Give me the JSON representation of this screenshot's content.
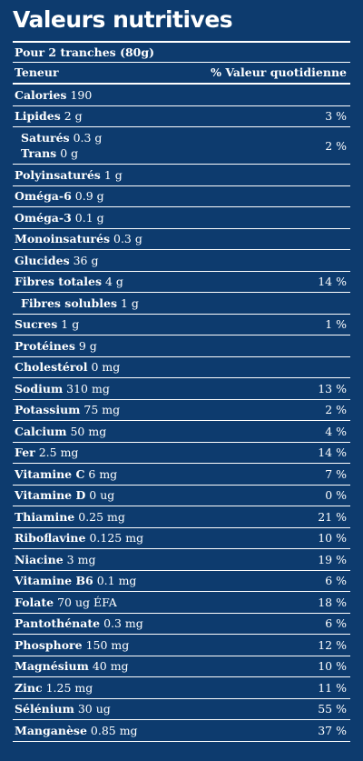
{
  "title": "Valeurs nutritives",
  "serving": "Pour 2 tranches (80g)",
  "header": {
    "left": "Teneur",
    "right": "% Valeur quotidienne"
  },
  "rows": [
    {
      "name": "Calories",
      "amount": "190",
      "dv": ""
    },
    {
      "name": "Lipides",
      "amount": "2 g",
      "dv": "3 %"
    },
    {
      "double": true,
      "sub1_name": "Saturés",
      "sub1_amount": "0.3 g",
      "sub2_name": "Trans",
      "sub2_amount": "0 g",
      "dv": "2 %"
    },
    {
      "name": "Polyinsaturés",
      "amount": "1 g",
      "dv": ""
    },
    {
      "name": "Oméga-6",
      "amount": "0.9 g",
      "dv": ""
    },
    {
      "name": "Oméga-3",
      "amount": "0.1 g",
      "dv": ""
    },
    {
      "name": "Monoinsaturés",
      "amount": "0.3 g",
      "dv": ""
    },
    {
      "name": "Glucides",
      "amount": "36 g",
      "dv": ""
    },
    {
      "name": "Fibres totales",
      "amount": "4 g",
      "dv": "14 %"
    },
    {
      "name": "Fibres solubles",
      "amount": "1 g",
      "dv": "",
      "sub": true
    },
    {
      "name": "Sucres",
      "amount": "1 g",
      "dv": "1 %"
    },
    {
      "name": "Protéines",
      "amount": "9 g",
      "dv": ""
    },
    {
      "name": "Cholestérol",
      "amount": "0 mg",
      "dv": ""
    },
    {
      "name": "Sodium",
      "amount": "310 mg",
      "dv": "13 %"
    },
    {
      "name": "Potassium",
      "amount": "75 mg",
      "dv": "2 %"
    },
    {
      "name": "Calcium",
      "amount": "50 mg",
      "dv": "4 %"
    },
    {
      "name": "Fer",
      "amount": "2.5 mg",
      "dv": "14 %"
    },
    {
      "name": "Vitamine C",
      "amount": "6 mg",
      "dv": "7 %"
    },
    {
      "name": "Vitamine D",
      "amount": "0 ug",
      "dv": "0 %"
    },
    {
      "name": "Thiamine",
      "amount": "0.25 mg",
      "dv": "21 %"
    },
    {
      "name": "Riboflavine",
      "amount": "0.125 mg",
      "dv": "10 %"
    },
    {
      "name": "Niacine",
      "amount": "3 mg",
      "dv": "19 %"
    },
    {
      "name": "Vitamine B6",
      "amount": "0.1 mg",
      "dv": "6 %"
    },
    {
      "name": "Folate",
      "amount": "70 ug ÉFA",
      "dv": "18 %"
    },
    {
      "name": "Pantothénate",
      "amount": "0.3 mg",
      "dv": "6 %"
    },
    {
      "name": "Phosphore",
      "amount": "150 mg",
      "dv": "12 %"
    },
    {
      "name": "Magnésium",
      "amount": "40 mg",
      "dv": "10 %"
    },
    {
      "name": "Zinc",
      "amount": "1.25 mg",
      "dv": "11 %"
    },
    {
      "name": "Sélénium",
      "amount": "30 ug",
      "dv": "55 %"
    },
    {
      "name": "Manganèse",
      "amount": "0.85 mg",
      "dv": "37 %"
    }
  ]
}
